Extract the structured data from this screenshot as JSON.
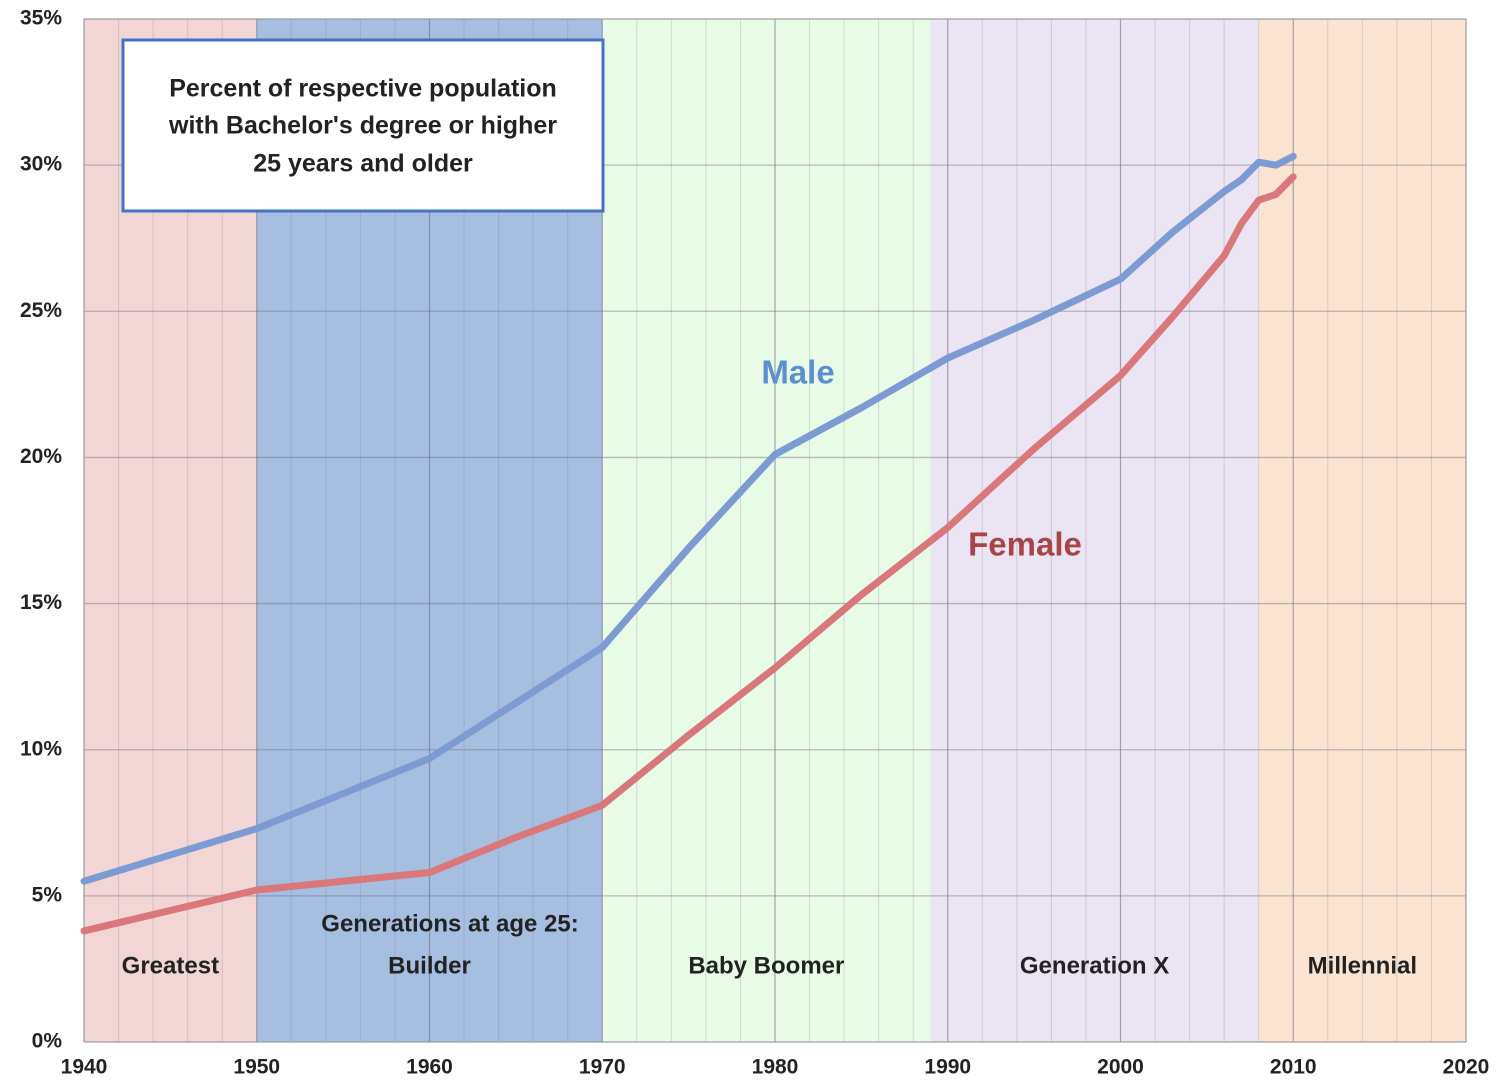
{
  "chart_data": {
    "type": "line",
    "title": [
      "Percent of respective population",
      "with Bachelor's degree or higher",
      "25 years and older"
    ],
    "band_heading": "Generations at age 25:",
    "bands": [
      {
        "name": "Greatest",
        "start": 1940,
        "end": 1950,
        "color": "#f2d6d6"
      },
      {
        "name": "Builder",
        "start": 1950,
        "end": 1970,
        "color": "#a6bedf"
      },
      {
        "name": "Baby Boomer",
        "start": 1970,
        "end": 1989,
        "color": "#e8fbe6"
      },
      {
        "name": "Generation X",
        "start": 1989,
        "end": 2008,
        "color": "#ebe4f2"
      },
      {
        "name": "Millennial",
        "start": 2008,
        "end": 2020,
        "color": "#fbe3d2"
      }
    ],
    "series": [
      {
        "name": "Male",
        "color": "#7b9bd2",
        "label_color": "#5b8fd0",
        "x": [
          1940,
          1950,
          1955,
          1960,
          1965,
          1970,
          1975,
          1980,
          1985,
          1990,
          1995,
          2000,
          2003,
          2006,
          2007,
          2008,
          2009,
          2010
        ],
        "values": [
          5.5,
          7.3,
          8.5,
          9.7,
          11.6,
          13.5,
          16.9,
          20.1,
          21.7,
          23.4,
          24.7,
          26.1,
          27.7,
          29.1,
          29.5,
          30.1,
          30.0,
          30.3
        ]
      },
      {
        "name": "Female",
        "color": "#d9777a",
        "label_color": "#a84446",
        "x": [
          1940,
          1950,
          1955,
          1960,
          1965,
          1970,
          1975,
          1980,
          1985,
          1990,
          1995,
          2000,
          2003,
          2006,
          2007,
          2008,
          2009,
          2010
        ],
        "values": [
          3.8,
          5.2,
          5.5,
          5.8,
          7.0,
          8.1,
          10.5,
          12.8,
          15.3,
          17.6,
          20.3,
          22.8,
          24.8,
          26.9,
          28.0,
          28.8,
          29.0,
          29.6
        ]
      }
    ],
    "xlim": [
      1940,
      2020
    ],
    "xticks": [
      1940,
      1950,
      1960,
      1970,
      1980,
      1990,
      2000,
      2010,
      2020
    ],
    "ylim": [
      0,
      35
    ],
    "yticks": [
      {
        "value": 0,
        "label": "0%"
      },
      {
        "value": 5,
        "label": "5%"
      },
      {
        "value": 10,
        "label": "10%"
      },
      {
        "value": 15,
        "label": "15%"
      },
      {
        "value": 20,
        "label": "20%"
      },
      {
        "value": 25,
        "label": "25%"
      },
      {
        "value": 30,
        "label": "30%"
      },
      {
        "value": 35,
        "label": "35%"
      }
    ],
    "grid": true
  }
}
